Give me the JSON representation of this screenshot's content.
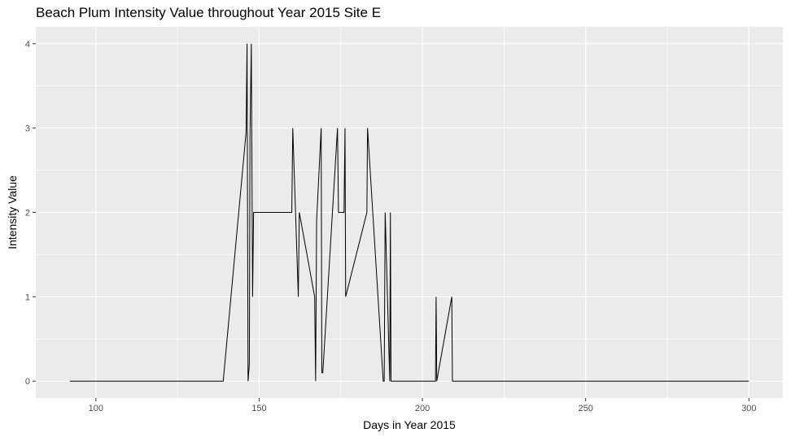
{
  "chart_data": {
    "type": "line",
    "title": "Beach Plum Intensity Value throughout Year 2015 Site E",
    "xlabel": "Days in Year 2015",
    "ylabel": "Intensity Value",
    "xlim": [
      81.6,
      310.4
    ],
    "ylim": [
      -0.2,
      4.2
    ],
    "x_ticks": [
      100,
      150,
      200,
      250,
      300
    ],
    "y_ticks": [
      0,
      1,
      2,
      3,
      4
    ],
    "grid": true,
    "legend": "none",
    "colors": {
      "panel": "#ebebeb",
      "grid": "#ffffff",
      "line": "#000000"
    },
    "series": [
      {
        "x": [
          92,
          139,
          146,
          146.3,
          146.6,
          147,
          147.2,
          147.6,
          148,
          148.3,
          160,
          160.3,
          162,
          162.3,
          167,
          167.3,
          167.6,
          169,
          169.2,
          169.5,
          174,
          174.3,
          176,
          176.3,
          176.5,
          183,
          183.2,
          188,
          188.3,
          188.6,
          190,
          190.2,
          190.4,
          204,
          204.2,
          204.4,
          209,
          209.2,
          300
        ],
        "y": [
          0,
          0,
          2.95,
          4,
          0,
          0.2,
          2.9,
          4,
          1,
          2,
          2,
          3,
          1,
          2,
          1,
          0,
          1.9,
          3,
          0.1,
          0.1,
          3,
          2,
          2,
          3,
          1,
          2,
          3,
          0,
          0,
          2,
          0,
          2,
          0,
          0,
          1,
          0,
          1,
          0,
          0
        ]
      }
    ]
  }
}
